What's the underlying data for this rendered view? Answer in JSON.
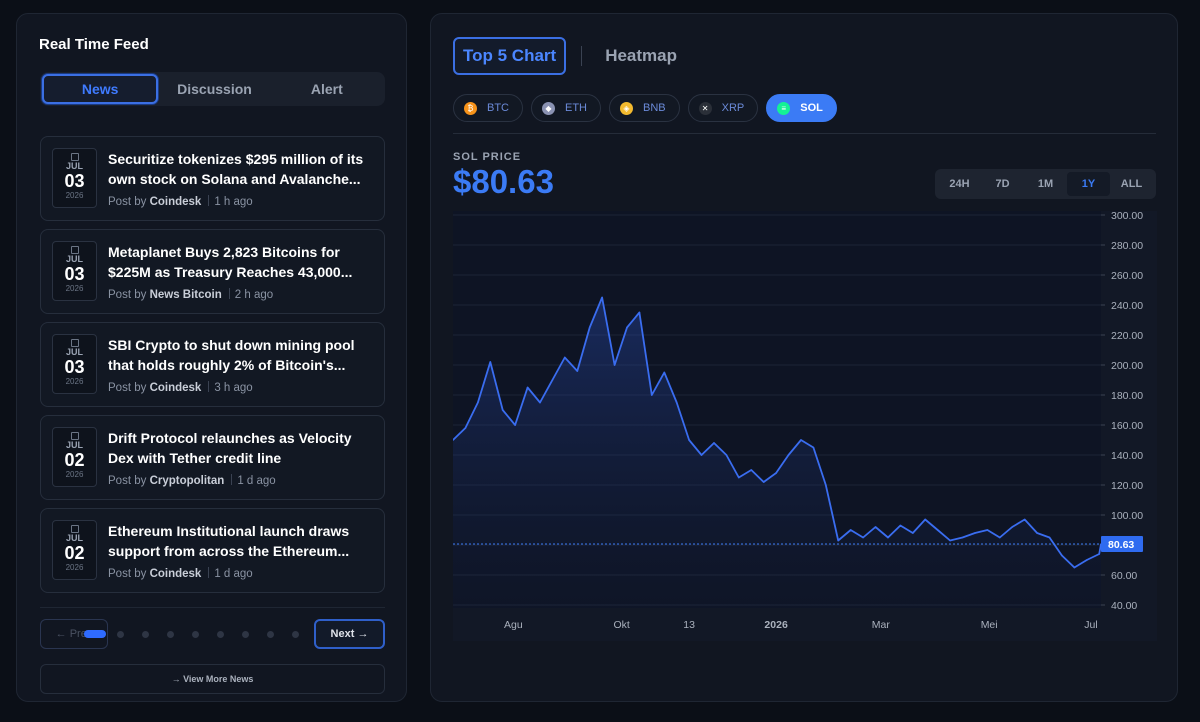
{
  "feed": {
    "title": "Real Time Feed",
    "tabs": [
      {
        "label": "News",
        "active": true
      },
      {
        "label": "Discussion",
        "active": false
      },
      {
        "label": "Alert",
        "active": false
      }
    ],
    "items": [
      {
        "month": "JUL",
        "day": "03",
        "year": "2026",
        "title": "Securitize tokenizes $295 million of its own stock on Solana and Avalanche...",
        "post_by": "Post by",
        "source": "Coindesk",
        "time": "1 h ago"
      },
      {
        "month": "JUL",
        "day": "03",
        "year": "2026",
        "title": "Metaplanet Buys 2,823 Bitcoins for $225M as Treasury Reaches 43,000...",
        "post_by": "Post by",
        "source": "News Bitcoin",
        "time": "2 h ago"
      },
      {
        "month": "JUL",
        "day": "03",
        "year": "2026",
        "title": "SBI Crypto to shut down mining pool that holds roughly 2% of Bitcoin's...",
        "post_by": "Post by",
        "source": "Coindesk",
        "time": "3 h ago"
      },
      {
        "month": "JUL",
        "day": "02",
        "year": "2026",
        "title": "Drift Protocol relaunches as Velocity Dex with Tether credit line",
        "post_by": "Post by",
        "source": "Cryptopolitan",
        "time": "1 d ago"
      },
      {
        "month": "JUL",
        "day": "02",
        "year": "2026",
        "title": "Ethereum Institutional launch draws support from across the Ethereum...",
        "post_by": "Post by",
        "source": "Coindesk",
        "time": "1 d ago"
      }
    ],
    "pager": {
      "prev": "← Prev",
      "next": "Next →",
      "dot_count": 9,
      "active_dot": 0
    },
    "view_more": "→   View More News"
  },
  "market": {
    "tabs": [
      {
        "label": "Top 5 Chart",
        "active": true
      },
      {
        "label": "Heatmap",
        "active": false
      }
    ],
    "coins": [
      {
        "symbol": "BTC",
        "icon": "bitcoin-icon",
        "glyph": "₿",
        "color": "#f7931a",
        "active": false
      },
      {
        "symbol": "ETH",
        "icon": "ethereum-icon",
        "glyph": "◆",
        "color": "#8a92b2",
        "active": false
      },
      {
        "symbol": "BNB",
        "icon": "bnb-icon",
        "glyph": "◈",
        "color": "#f3ba2f",
        "active": false
      },
      {
        "symbol": "XRP",
        "icon": "xrp-icon",
        "glyph": "✕",
        "color": "#2a2f38",
        "active": false
      },
      {
        "symbol": "SOL",
        "icon": "solana-icon",
        "glyph": "≡",
        "color": "#14f195",
        "active": true
      }
    ],
    "price_label": "SOL PRICE",
    "price": "$80.63",
    "ranges": [
      {
        "label": "24H",
        "active": false
      },
      {
        "label": "7D",
        "active": false
      },
      {
        "label": "1M",
        "active": false
      },
      {
        "label": "1Y",
        "active": true
      },
      {
        "label": "ALL",
        "active": false
      }
    ]
  },
  "colors": {
    "accent": "#3b7bf5",
    "line": "#3a6df0",
    "background": "#0b0f17"
  },
  "chart_data": {
    "type": "area",
    "series": [
      {
        "x": [
          "2025-07-03",
          "2025-07-10",
          "2025-07-17",
          "2025-07-24",
          "2025-07-31",
          "2025-08-07",
          "2025-08-14",
          "2025-08-21",
          "2025-08-28",
          "2025-09-04",
          "2025-09-11",
          "2025-09-18",
          "2025-09-25",
          "2025-10-02",
          "2025-10-09",
          "2025-10-16",
          "2025-10-23",
          "2025-10-30",
          "2025-11-06",
          "2025-11-13",
          "2025-11-20",
          "2025-11-27",
          "2025-12-04",
          "2025-12-11",
          "2025-12-18",
          "2025-12-25",
          "2026-01-01",
          "2026-01-08",
          "2026-01-15",
          "2026-01-22",
          "2026-01-29",
          "2026-02-05",
          "2026-02-12",
          "2026-02-19",
          "2026-02-26",
          "2026-03-05",
          "2026-03-12",
          "2026-03-19",
          "2026-03-26",
          "2026-04-02",
          "2026-04-09",
          "2026-04-16",
          "2026-04-23",
          "2026-04-30",
          "2026-05-07",
          "2026-05-14",
          "2026-05-21",
          "2026-05-28",
          "2026-06-04",
          "2026-06-11",
          "2026-06-18",
          "2026-06-25",
          "2026-07-02",
          "2026-07-03"
        ],
        "values": [
          150,
          158,
          175,
          202,
          170,
          160,
          185,
          175,
          190,
          205,
          196,
          225,
          245,
          200,
          225,
          235,
          180,
          195,
          175,
          150,
          140,
          148,
          140,
          125,
          130,
          122,
          128,
          140,
          150,
          145,
          120,
          83,
          90,
          85,
          92,
          85,
          93,
          88,
          97,
          90,
          83,
          85,
          88,
          90,
          85,
          92,
          97,
          88,
          85,
          73,
          65,
          70,
          74,
          80.63
        ]
      }
    ],
    "x_ticks": [
      "Agu",
      "Okt",
      "13",
      "2026",
      "Mar",
      "Mei",
      "Jul"
    ],
    "y_ticks": [
      "300.00",
      "280.00",
      "260.00",
      "240.00",
      "220.00",
      "200.00",
      "180.00",
      "160.00",
      "140.00",
      "120.00",
      "100.00",
      "80.00",
      "60.00",
      "40.00"
    ],
    "ylim": [
      40,
      300
    ],
    "last_value_label": "80.63",
    "grid": true
  }
}
